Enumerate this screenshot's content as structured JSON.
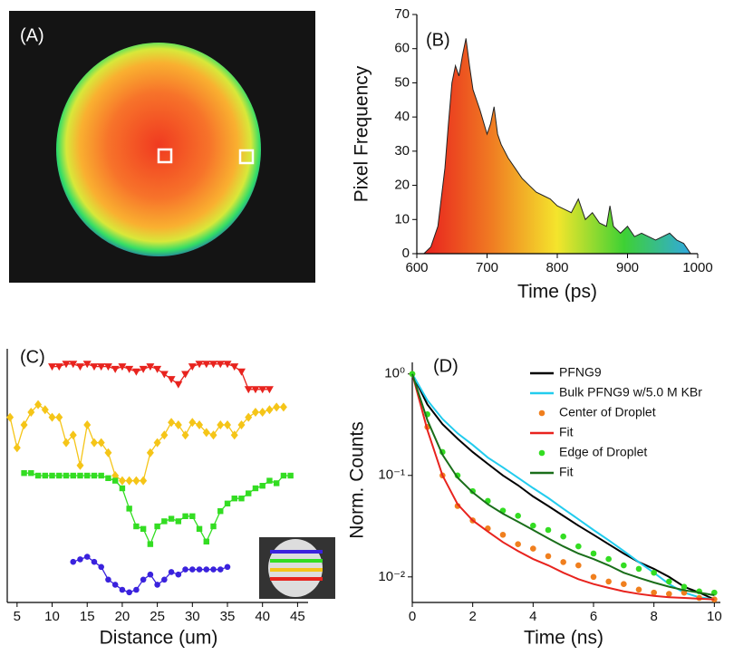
{
  "chart_data": [
    {
      "type": "image",
      "label": "(A)"
    },
    {
      "type": "area",
      "label": "(B)",
      "y_label": "Pixel Frequency",
      "x_label": "Time (ps)",
      "xlim": [
        600,
        1000
      ],
      "xticks": [
        600,
        700,
        800,
        900,
        1000
      ],
      "ylim": [
        0,
        70
      ],
      "yticks": [
        0,
        10,
        20,
        30,
        40,
        50,
        60,
        70
      ],
      "gradient_colors": [
        "#e8201e",
        "#f07a22",
        "#f4e52c",
        "#3ed134",
        "#31a8e0"
      ],
      "x": [
        610,
        620,
        630,
        640,
        645,
        650,
        655,
        660,
        665,
        670,
        675,
        680,
        690,
        700,
        705,
        710,
        715,
        720,
        730,
        740,
        750,
        760,
        770,
        780,
        790,
        800,
        810,
        820,
        830,
        840,
        850,
        860,
        870,
        875,
        880,
        890,
        900,
        910,
        920,
        930,
        940,
        950,
        960,
        970,
        980,
        990
      ],
      "values": [
        0,
        2,
        8,
        25,
        38,
        50,
        55,
        52,
        58,
        63,
        55,
        48,
        42,
        35,
        38,
        43,
        35,
        32,
        28,
        25,
        22,
        20,
        18,
        17,
        16,
        14,
        13,
        12,
        16,
        10,
        12,
        9,
        8,
        14,
        8,
        6,
        8,
        5,
        6,
        5,
        4,
        5,
        6,
        4,
        3,
        0
      ]
    },
    {
      "type": "line",
      "label": "(C)",
      "x_label": "Distance (um)",
      "xlim": [
        3.6,
        46.5
      ],
      "xticks": [
        5,
        10,
        15,
        20,
        25,
        30,
        35,
        40,
        45
      ],
      "ylim": [
        0,
        10
      ],
      "series": [
        {
          "color": "#e8231e",
          "marker": "triangle-down",
          "x": [
            10,
            11,
            12,
            13,
            14,
            15,
            16,
            17,
            18,
            19,
            20,
            21,
            22,
            23,
            24,
            25,
            26,
            27,
            28,
            29,
            30,
            31,
            32,
            33,
            34,
            35,
            36,
            37,
            38,
            39,
            40,
            41
          ],
          "values": [
            9.3,
            9.3,
            9.4,
            9.4,
            9.3,
            9.4,
            9.3,
            9.3,
            9.3,
            9.2,
            9.3,
            9.2,
            9.1,
            9.2,
            9.3,
            9.2,
            9.0,
            8.8,
            8.6,
            9.0,
            9.3,
            9.4,
            9.4,
            9.4,
            9.4,
            9.4,
            9.3,
            9.1,
            8.4,
            8.4,
            8.4,
            8.4
          ]
        },
        {
          "color": "#f5c518",
          "marker": "diamond",
          "x": [
            4,
            5,
            6,
            7,
            8,
            9,
            10,
            11,
            12,
            13,
            14,
            15,
            16,
            17,
            18,
            19,
            20,
            21,
            22,
            23,
            24,
            25,
            26,
            27,
            28,
            29,
            30,
            31,
            32,
            33,
            34,
            35,
            36,
            37,
            38,
            39,
            40,
            41,
            42,
            43
          ],
          "values": [
            7.3,
            6.1,
            7.0,
            7.5,
            7.8,
            7.6,
            7.3,
            7.3,
            6.3,
            6.6,
            5.4,
            7.0,
            6.3,
            6.3,
            5.9,
            5.0,
            4.8,
            4.8,
            4.8,
            4.8,
            5.9,
            6.3,
            6.6,
            7.1,
            7.0,
            6.6,
            7.1,
            7.0,
            6.7,
            6.6,
            7.0,
            7.0,
            6.6,
            7.0,
            7.3,
            7.5,
            7.5,
            7.6,
            7.7,
            7.7
          ]
        },
        {
          "color": "#33dd22",
          "marker": "square",
          "x": [
            6,
            7,
            8,
            9,
            10,
            11,
            12,
            13,
            14,
            15,
            16,
            17,
            18,
            19,
            20,
            21,
            22,
            23,
            24,
            25,
            26,
            27,
            28,
            29,
            30,
            31,
            32,
            33,
            34,
            35,
            36,
            37,
            38,
            39,
            40,
            41,
            42,
            43,
            44
          ],
          "values": [
            5.1,
            5.1,
            5.0,
            5.0,
            5.0,
            5.0,
            5.0,
            5.0,
            5.0,
            5.0,
            5.0,
            5.0,
            4.9,
            4.8,
            4.5,
            3.7,
            3.0,
            2.9,
            2.3,
            3.0,
            3.2,
            3.3,
            3.2,
            3.4,
            3.4,
            2.9,
            2.4,
            3.0,
            3.6,
            3.9,
            4.1,
            4.1,
            4.3,
            4.5,
            4.6,
            4.8,
            4.7,
            5.0,
            5.0
          ]
        },
        {
          "color": "#3a22dd",
          "marker": "circle",
          "x": [
            13,
            14,
            15,
            16,
            17,
            18,
            19,
            20,
            21,
            22,
            23,
            24,
            25,
            26,
            27,
            28,
            29,
            30,
            31,
            32,
            33,
            34,
            35
          ],
          "values": [
            1.6,
            1.7,
            1.8,
            1.6,
            1.4,
            0.9,
            0.7,
            0.5,
            0.4,
            0.5,
            0.9,
            1.1,
            0.7,
            0.9,
            1.2,
            1.1,
            1.3,
            1.3,
            1.3,
            1.3,
            1.3,
            1.3,
            1.4
          ]
        }
      ]
    },
    {
      "type": "line",
      "label": "(D)",
      "y_label": "Norm. Counts",
      "x_label": "Time (ns)",
      "log_y": true,
      "xlim": [
        0,
        10.2
      ],
      "xticks": [
        0,
        2,
        4,
        6,
        8,
        10
      ],
      "ylim": [
        0.0056,
        1.3
      ],
      "yticks": [
        {
          "value": 1,
          "label": "10⁰"
        },
        {
          "value": 0.1,
          "label": "10⁻¹"
        },
        {
          "value": 0.01,
          "label": "10⁻²"
        }
      ],
      "x": [
        0,
        0.5,
        1,
        1.5,
        2,
        2.5,
        3,
        3.5,
        4,
        4.5,
        5,
        5.5,
        6,
        6.5,
        7,
        7.5,
        8,
        8.5,
        9,
        9.5,
        10
      ],
      "series": [
        {
          "name": "PFNG9",
          "color": "#000000",
          "style": "line",
          "values": [
            1,
            0.5,
            0.32,
            0.23,
            0.17,
            0.13,
            0.1,
            0.08,
            0.062,
            0.05,
            0.04,
            0.032,
            0.026,
            0.021,
            0.017,
            0.014,
            0.012,
            0.01,
            0.008,
            0.007,
            0.006
          ]
        },
        {
          "name": "Bulk PFNG9 w/5.0 M KBr",
          "color": "#22ccee",
          "style": "line",
          "values": [
            1,
            0.55,
            0.36,
            0.26,
            0.2,
            0.15,
            0.12,
            0.095,
            0.075,
            0.06,
            0.047,
            0.037,
            0.029,
            0.023,
            0.018,
            0.014,
            0.011,
            0.0085,
            0.007,
            0.0063,
            0.006
          ]
        },
        {
          "name": "Center of Droplet",
          "color": "#f07f1e",
          "style": "dots",
          "values": [
            1,
            0.3,
            0.1,
            0.05,
            0.036,
            0.03,
            0.026,
            0.021,
            0.019,
            0.016,
            0.014,
            0.013,
            0.01,
            0.009,
            0.0085,
            0.0075,
            0.007,
            0.0068,
            0.007,
            0.0062,
            0.006
          ]
        },
        {
          "name": "Fit",
          "color": "#e8231e",
          "style": "line",
          "values": [
            1,
            0.28,
            0.1,
            0.052,
            0.036,
            0.028,
            0.022,
            0.018,
            0.015,
            0.013,
            0.011,
            0.0095,
            0.0085,
            0.0078,
            0.0072,
            0.0068,
            0.0065,
            0.0063,
            0.0062,
            0.0061,
            0.006
          ]
        },
        {
          "name": "Edge of Droplet",
          "color": "#33dd22",
          "style": "dots",
          "values": [
            1,
            0.4,
            0.17,
            0.1,
            0.07,
            0.056,
            0.045,
            0.04,
            0.032,
            0.029,
            0.025,
            0.02,
            0.017,
            0.015,
            0.013,
            0.012,
            0.011,
            0.009,
            0.008,
            0.0072,
            0.007
          ]
        },
        {
          "name": "Fit",
          "color": "#1a6e1a",
          "style": "line",
          "values": [
            1,
            0.35,
            0.16,
            0.095,
            0.068,
            0.052,
            0.042,
            0.035,
            0.029,
            0.024,
            0.02,
            0.017,
            0.015,
            0.013,
            0.011,
            0.0098,
            0.0088,
            0.008,
            0.0074,
            0.007,
            0.0066
          ]
        }
      ]
    }
  ]
}
